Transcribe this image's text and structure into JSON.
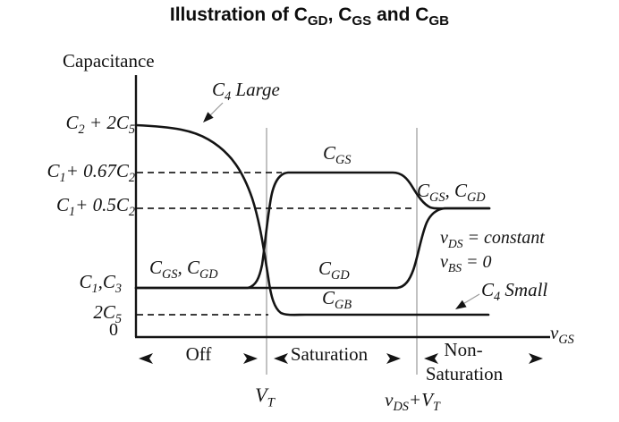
{
  "colors": {
    "background": "#ffffff",
    "ink": "#141414",
    "region_line_gray": "#a8a8a8",
    "leader_gray": "#9a9a9a"
  },
  "title": {
    "segments": [
      {
        "t": "Illustration of C"
      },
      {
        "s": "GD"
      },
      {
        "t": ", C"
      },
      {
        "s": "GS"
      },
      {
        "t": " and C"
      },
      {
        "s": "GB"
      }
    ]
  },
  "axes": {
    "y_title": "Capacitance",
    "x_title_segments": [
      {
        "t": "v"
      },
      {
        "s": "GS"
      }
    ],
    "origin_label": "0",
    "y_tick_labels": [
      {
        "name": "c2_plus_2c5",
        "segments": [
          {
            "t": "C"
          },
          {
            "s": "2"
          },
          {
            "t": " + 2C"
          },
          {
            "s": "5"
          }
        ]
      },
      {
        "name": "c1_plus_067c2",
        "segments": [
          {
            "t": "C"
          },
          {
            "s": "1"
          },
          {
            "t": "+ 0.67C"
          },
          {
            "s": "2"
          }
        ]
      },
      {
        "name": "c1_plus_05c2",
        "segments": [
          {
            "t": "C"
          },
          {
            "s": "1"
          },
          {
            "t": "+ 0.5C"
          },
          {
            "s": "2"
          }
        ]
      },
      {
        "name": "c1_c3",
        "segments": [
          {
            "t": "C"
          },
          {
            "s": "1"
          },
          {
            "t": ",C"
          },
          {
            "s": "3"
          }
        ]
      },
      {
        "name": "2c5",
        "segments": [
          {
            "t": "2C"
          },
          {
            "s": "5"
          }
        ]
      }
    ],
    "x_tick_labels": [
      {
        "name": "vt",
        "segments": [
          {
            "t": "V"
          },
          {
            "s": "T"
          }
        ]
      },
      {
        "name": "vds_plus_vt",
        "segments": [
          {
            "t": "v"
          },
          {
            "s": "DS"
          },
          {
            "t": "+V"
          },
          {
            "s": "T"
          }
        ]
      }
    ]
  },
  "regions": {
    "off": "Off",
    "saturation": "Saturation",
    "non_saturation_line1": "Non-",
    "non_saturation_line2": "Saturation"
  },
  "curve_labels": {
    "cgs_cgd_off": [
      {
        "t": "C"
      },
      {
        "s": "GS"
      },
      {
        "t": ", C"
      },
      {
        "s": "GD"
      }
    ],
    "cgs_saturation": [
      {
        "t": "C"
      },
      {
        "s": "GS"
      }
    ],
    "cgd_saturation": [
      {
        "t": "C"
      },
      {
        "s": "GD"
      }
    ],
    "cgb": [
      {
        "t": "C"
      },
      {
        "s": "GB"
      }
    ],
    "cgs_cgd_right": [
      {
        "t": "C"
      },
      {
        "s": "GS"
      },
      {
        "t": ", C"
      },
      {
        "s": "GD"
      }
    ]
  },
  "annotations": {
    "c4_large": [
      {
        "t": "C"
      },
      {
        "s": "4"
      },
      {
        "t": " Large"
      }
    ],
    "c4_small": [
      {
        "t": "C"
      },
      {
        "s": "4"
      },
      {
        "t": " Small"
      }
    ],
    "vds_constant": [
      {
        "t": "v"
      },
      {
        "s": "DS"
      },
      {
        "t": " = constant"
      }
    ],
    "vbs_zero": [
      {
        "t": "v"
      },
      {
        "s": "BS"
      },
      {
        "t": " = 0"
      }
    ]
  },
  "chart_data": {
    "type": "line",
    "title": "Illustration of C_GD, C_GS and C_GB",
    "xlabel": "v_GS",
    "ylabel": "Capacitance",
    "x_ticks": [
      "V_T",
      "v_DS+V_T"
    ],
    "x_ticks_normalized": [
      0.315,
      0.678
    ],
    "y_ticks": [
      "0",
      "2C_5",
      "C_1,C_3",
      "C_1+0.5C_2",
      "C_1+0.67C_2",
      "C_2+2C_5"
    ],
    "y_ticks_normalized": [
      0,
      0.086,
      0.19,
      0.49,
      0.63,
      0.81
    ],
    "regions": [
      "Off",
      "Saturation",
      "Non-Saturation"
    ],
    "conditions": [
      "v_DS = constant",
      "v_BS = 0"
    ],
    "dashed_guides": [
      "C_1+0.67C_2",
      "C_1+0.5C_2",
      "2C_5"
    ],
    "legend_position": "labels on curves",
    "grid": false,
    "series": [
      {
        "name": "C_GB",
        "description": "Equals C_2+2C_5 in Off region (C_4 large), rolls off near V_T and drops steeply to 2C_5 (C_4 small), flat at 2C_5 through Saturation and Non-Saturation",
        "x_normalized": [
          0,
          0.17,
          0.28,
          0.315,
          0.34,
          1.0
        ],
        "y_normalized": [
          0.81,
          0.78,
          0.45,
          0.28,
          0.086,
          0.086
        ]
      },
      {
        "name": "C_GS",
        "description": "Equals C_1,C_3 in Off region (overlapping C_GD), rises at V_T to C_1+0.67C_2 in Saturation, falls at v_DS+V_T to C_1+0.5C_2 in Non-Saturation",
        "x_normalized": [
          0,
          0.27,
          0.315,
          0.36,
          0.62,
          0.71,
          1.0
        ],
        "y_normalized": [
          0.19,
          0.19,
          0.35,
          0.63,
          0.63,
          0.49,
          0.49
        ]
      },
      {
        "name": "C_GD",
        "description": "Equals C_1,C_3 in Off and Saturation regions, rises at v_DS+V_T to C_1+0.5C_2 in Non-Saturation (merges with C_GS)",
        "x_normalized": [
          0,
          0.63,
          0.678,
          0.74,
          1.0
        ],
        "y_normalized": [
          0.19,
          0.19,
          0.31,
          0.49,
          0.49
        ]
      }
    ]
  }
}
